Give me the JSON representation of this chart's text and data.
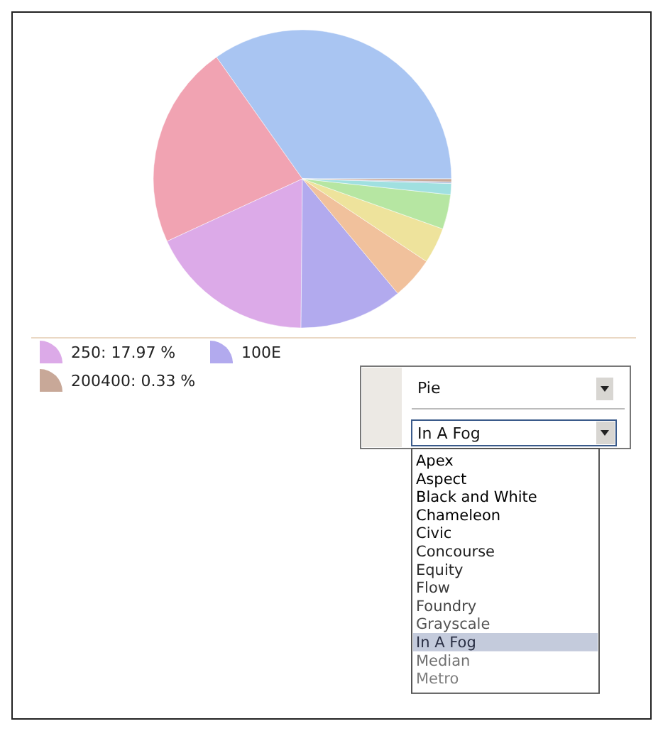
{
  "chart_data": {
    "type": "pie",
    "legend": "bottom",
    "categories": [
      null,
      null,
      "250",
      "100E",
      null,
      null,
      null,
      null,
      null,
      "200400"
    ],
    "values": [
      34.78,
      22.1,
      17.97,
      11.2,
      4.6,
      3.9,
      3.75,
      1.2,
      0.17,
      0.33
    ],
    "value_labels": [
      null,
      null,
      "17.97 %",
      null,
      null,
      null,
      null,
      null,
      null,
      "0.33 %"
    ],
    "colors": [
      "#a9c5f2",
      "#f1a3b2",
      "#dcaae8",
      "#b2aaee",
      "#f1c19c",
      "#eee39c",
      "#b6e6a2",
      "#a0e0e0",
      "#a9b9d9",
      "#c8a898"
    ],
    "annotations": [
      "Pie",
      "In A Fog",
      "Apex",
      "Aspect",
      "Black and White",
      "Chameleon",
      "Civic",
      "Concourse",
      "Equity",
      "Flow",
      "Foundry",
      "Grayscale",
      "In A Fog",
      "Median",
      "Metro"
    ]
  }
}
